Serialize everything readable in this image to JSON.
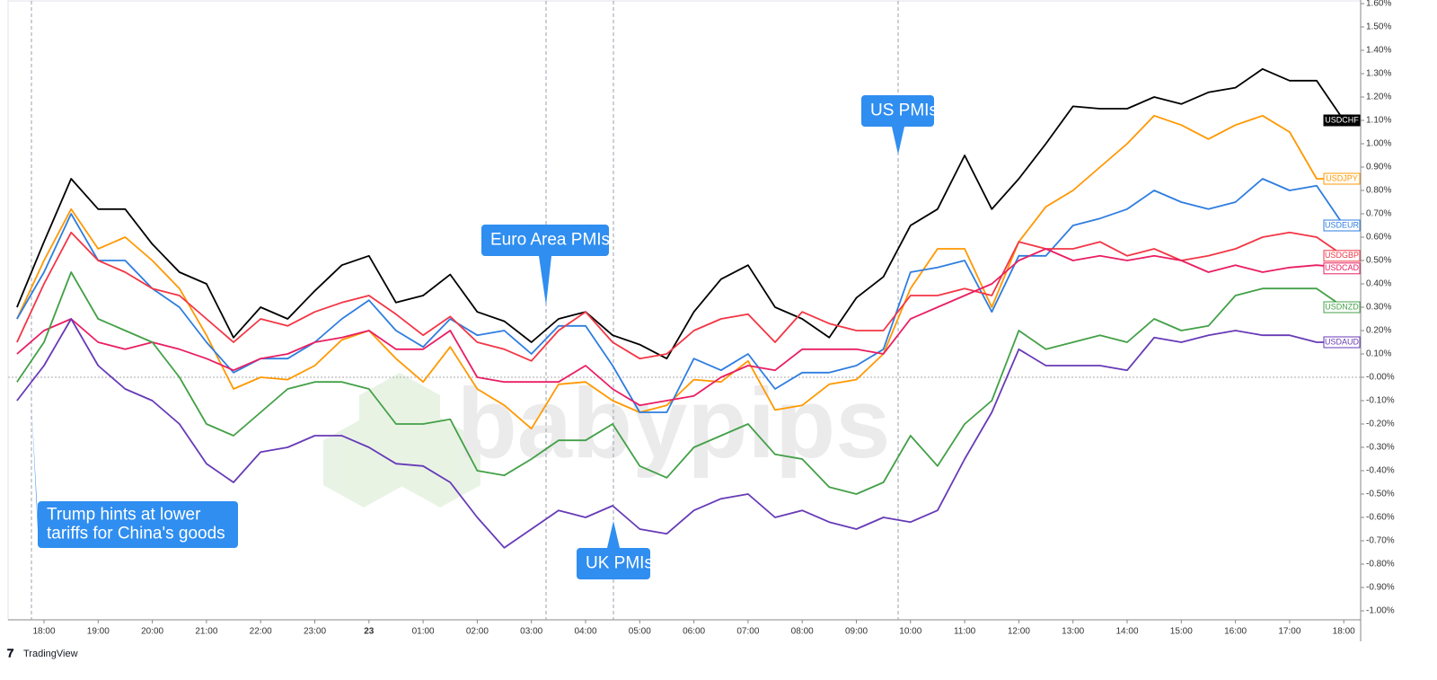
{
  "chart_data": {
    "type": "line",
    "categories": [
      null,
      "18:00",
      null,
      "19:00",
      null,
      "20:00",
      null,
      "21:00",
      null,
      "22:00",
      null,
      "23:00",
      null,
      "23",
      null,
      "01:00",
      null,
      "02:00",
      null,
      "03:00",
      null,
      "04:00",
      null,
      "05:00",
      null,
      "06:00",
      null,
      "07:00",
      null,
      "08:00",
      null,
      "09:00",
      null,
      "10:00",
      null,
      "11:00",
      null,
      "12:00",
      null,
      "13:00",
      null,
      "14:00",
      null,
      "15:00",
      null,
      "16:00",
      null,
      "17:00",
      null,
      "18:00"
    ],
    "series": [
      {
        "name": "USDCHF",
        "color": "#000000",
        "values": [
          0.3,
          0.58,
          0.85,
          0.72,
          0.72,
          0.57,
          0.45,
          0.4,
          0.17,
          0.3,
          0.25,
          0.37,
          0.48,
          0.52,
          0.32,
          0.35,
          0.44,
          0.28,
          0.24,
          0.15,
          0.25,
          0.28,
          0.18,
          0.14,
          0.08,
          0.28,
          0.42,
          0.48,
          0.3,
          0.25,
          0.17,
          0.34,
          0.43,
          0.65,
          0.72,
          0.95,
          0.72,
          0.85,
          1.0,
          1.16,
          1.15,
          1.15,
          1.2,
          1.17,
          1.22,
          1.24,
          1.32,
          1.27,
          1.27,
          1.1
        ]
      },
      {
        "name": "USDJPY",
        "color": "#ff9800",
        "values": [
          0.25,
          0.5,
          0.72,
          0.55,
          0.6,
          0.5,
          0.38,
          0.18,
          -0.05,
          0.0,
          -0.01,
          0.05,
          0.16,
          0.2,
          0.08,
          -0.02,
          0.13,
          -0.05,
          -0.12,
          -0.22,
          -0.03,
          -0.02,
          -0.1,
          -0.15,
          -0.12,
          -0.01,
          -0.02,
          0.07,
          -0.14,
          -0.12,
          -0.03,
          -0.01,
          0.1,
          0.38,
          0.55,
          0.55,
          0.3,
          0.58,
          0.73,
          0.8,
          0.9,
          1.0,
          1.12,
          1.08,
          1.02,
          1.08,
          1.12,
          1.05,
          0.85,
          0.85
        ]
      },
      {
        "name": "USDEUR",
        "color": "#2e7de0",
        "values": [
          0.25,
          0.45,
          0.7,
          0.5,
          0.5,
          0.38,
          0.3,
          0.15,
          0.02,
          0.08,
          0.08,
          0.15,
          0.25,
          0.33,
          0.2,
          0.13,
          0.25,
          0.18,
          0.2,
          0.1,
          0.22,
          0.22,
          0.05,
          -0.15,
          -0.15,
          0.08,
          0.03,
          0.1,
          -0.05,
          0.02,
          0.02,
          0.05,
          0.12,
          0.45,
          0.47,
          0.5,
          0.28,
          0.52,
          0.52,
          0.65,
          0.68,
          0.72,
          0.8,
          0.75,
          0.72,
          0.75,
          0.85,
          0.8,
          0.82,
          0.65
        ]
      },
      {
        "name": "USDGBP",
        "color": "#f23645",
        "values": [
          0.15,
          0.4,
          0.62,
          0.5,
          0.45,
          0.38,
          0.35,
          0.25,
          0.15,
          0.25,
          0.22,
          0.28,
          0.32,
          0.35,
          0.27,
          0.18,
          0.26,
          0.15,
          0.12,
          0.07,
          0.2,
          0.28,
          0.15,
          0.08,
          0.1,
          0.2,
          0.25,
          0.27,
          0.15,
          0.28,
          0.23,
          0.2,
          0.2,
          0.35,
          0.35,
          0.38,
          0.35,
          0.58,
          0.55,
          0.55,
          0.58,
          0.52,
          0.55,
          0.5,
          0.52,
          0.55,
          0.6,
          0.62,
          0.6,
          0.52
        ]
      },
      {
        "name": "USDCAD",
        "color": "#e91e63",
        "values": [
          0.1,
          0.2,
          0.25,
          0.15,
          0.12,
          0.15,
          0.12,
          0.08,
          0.03,
          0.08,
          0.1,
          0.15,
          0.17,
          0.2,
          0.12,
          0.12,
          0.2,
          0.0,
          -0.02,
          -0.02,
          -0.02,
          0.05,
          -0.05,
          -0.12,
          -0.1,
          -0.08,
          0.0,
          0.05,
          0.03,
          0.12,
          0.12,
          0.12,
          0.1,
          0.25,
          0.3,
          0.35,
          0.4,
          0.5,
          0.55,
          0.5,
          0.52,
          0.5,
          0.52,
          0.5,
          0.45,
          0.48,
          0.45,
          0.47,
          0.48,
          0.47
        ]
      },
      {
        "name": "USDNZD",
        "color": "#43a047",
        "values": [
          -0.02,
          0.15,
          0.45,
          0.25,
          0.2,
          0.15,
          0.0,
          -0.2,
          -0.25,
          -0.15,
          -0.05,
          -0.02,
          -0.02,
          -0.05,
          -0.2,
          -0.2,
          -0.18,
          -0.4,
          -0.42,
          -0.35,
          -0.27,
          -0.27,
          -0.2,
          -0.38,
          -0.43,
          -0.3,
          -0.25,
          -0.2,
          -0.33,
          -0.35,
          -0.47,
          -0.5,
          -0.45,
          -0.25,
          -0.38,
          -0.2,
          -0.1,
          0.2,
          0.12,
          0.15,
          0.18,
          0.15,
          0.25,
          0.2,
          0.22,
          0.35,
          0.38,
          0.38,
          0.38,
          0.3
        ]
      },
      {
        "name": "USDAUD",
        "color": "#673ab7",
        "values": [
          -0.1,
          0.05,
          0.25,
          0.05,
          -0.05,
          -0.1,
          -0.2,
          -0.37,
          -0.45,
          -0.32,
          -0.3,
          -0.25,
          -0.25,
          -0.3,
          -0.37,
          -0.38,
          -0.45,
          -0.6,
          -0.73,
          -0.65,
          -0.57,
          -0.6,
          -0.55,
          -0.65,
          -0.67,
          -0.57,
          -0.52,
          -0.5,
          -0.6,
          -0.57,
          -0.62,
          -0.65,
          -0.6,
          -0.62,
          -0.57,
          -0.35,
          -0.15,
          0.12,
          0.05,
          0.05,
          0.05,
          0.03,
          0.17,
          0.15,
          0.18,
          0.2,
          0.18,
          0.18,
          0.15,
          0.15
        ]
      }
    ],
    "ylim": [
      -1.04,
      1.62
    ],
    "yticks": [
      {
        "value": 1.6,
        "label": "1.60%"
      },
      {
        "value": 1.5,
        "label": "1.50%"
      },
      {
        "value": 1.4,
        "label": "1.40%"
      },
      {
        "value": 1.3,
        "label": "1.30%"
      },
      {
        "value": 1.2,
        "label": "1.20%"
      },
      {
        "value": 1.1,
        "label": "1.10%"
      },
      {
        "value": 1.0,
        "label": "1.00%"
      },
      {
        "value": 0.9,
        "label": "0.90%"
      },
      {
        "value": 0.8,
        "label": "0.80%"
      },
      {
        "value": 0.7,
        "label": "0.70%"
      },
      {
        "value": 0.6,
        "label": "0.60%"
      },
      {
        "value": 0.5,
        "label": "0.50%"
      },
      {
        "value": 0.4,
        "label": "0.40%"
      },
      {
        "value": 0.3,
        "label": "0.30%"
      },
      {
        "value": 0.2,
        "label": "0.20%"
      },
      {
        "value": 0.1,
        "label": "0.10%"
      },
      {
        "value": 0,
        "label": "-0.00%"
      },
      {
        "value": -0.1,
        "label": "-0.10%"
      },
      {
        "value": -0.2,
        "label": "-0.20%"
      },
      {
        "value": -0.3,
        "label": "-0.30%"
      },
      {
        "value": -0.4,
        "label": "-0.40%"
      },
      {
        "value": -0.5,
        "label": "-0.50%"
      },
      {
        "value": -0.6,
        "label": "-0.60%"
      },
      {
        "value": -0.7,
        "label": "-0.70%"
      },
      {
        "value": -0.8,
        "label": "-0.80%"
      },
      {
        "value": -0.9,
        "label": "-0.90%"
      },
      {
        "value": -1.0,
        "label": "-1.00%"
      }
    ],
    "annotations": [
      {
        "lines": [
          "Trump hints at lower",
          "tariffs for China's goods"
        ]
      },
      {
        "lines": [
          "Euro Area PMIs"
        ]
      },
      {
        "lines": [
          "UK PMIs"
        ]
      },
      {
        "lines": [
          "US PMIs"
        ]
      }
    ],
    "watermark": "babypips",
    "footer": "TradingView"
  }
}
